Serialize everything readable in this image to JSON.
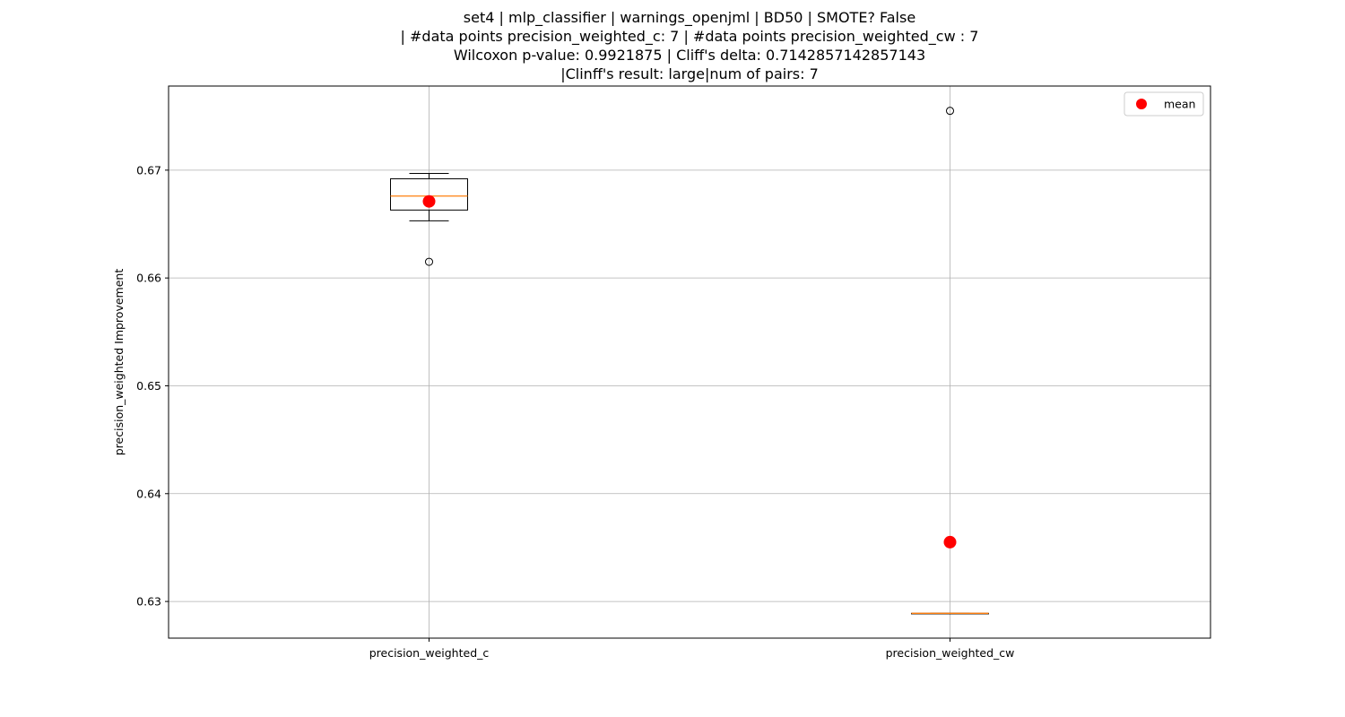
{
  "chart_data": {
    "type": "box",
    "title_lines": [
      "set4 | mlp_classifier | warnings_openjml | BD50 | SMOTE? False",
      "| #data points precision_weighted_c: 7 | #data points precision_weighted_cw : 7",
      "Wilcoxon p-value: 0.9921875 | Cliff's delta: 0.7142857142857143",
      "|Clinff's result: large|num of pairs: 7"
    ],
    "xlabel": "",
    "ylabel": "precision_weighted Improvement",
    "ylim": [
      0.6266,
      0.6778
    ],
    "yticks": [
      0.63,
      0.64,
      0.65,
      0.66,
      0.67
    ],
    "ytick_labels": [
      "0.63",
      "0.64",
      "0.65",
      "0.66",
      "0.67"
    ],
    "grid": true,
    "legend": {
      "placement": "top-right",
      "entries": [
        {
          "label": "mean",
          "color": "#ff0000"
        }
      ]
    },
    "colors": {
      "median": "#ff7f0e",
      "mean": "#ff0000",
      "box": "#000000",
      "grid": "#b0b0b0"
    },
    "categories": [
      "precision_weighted_c",
      "precision_weighted_cw"
    ],
    "boxes": [
      {
        "name": "precision_weighted_c",
        "whisker_low": 0.6653,
        "q1": 0.6663,
        "median": 0.6676,
        "q3": 0.6692,
        "whisker_high": 0.6697,
        "mean": 0.6671,
        "fliers": [
          0.6615
        ]
      },
      {
        "name": "precision_weighted_cw",
        "whisker_low": 0.6289,
        "q1": 0.6289,
        "median": 0.6289,
        "q3": 0.6289,
        "whisker_high": 0.6289,
        "mean": 0.6355,
        "fliers": [
          0.6755
        ]
      }
    ]
  }
}
